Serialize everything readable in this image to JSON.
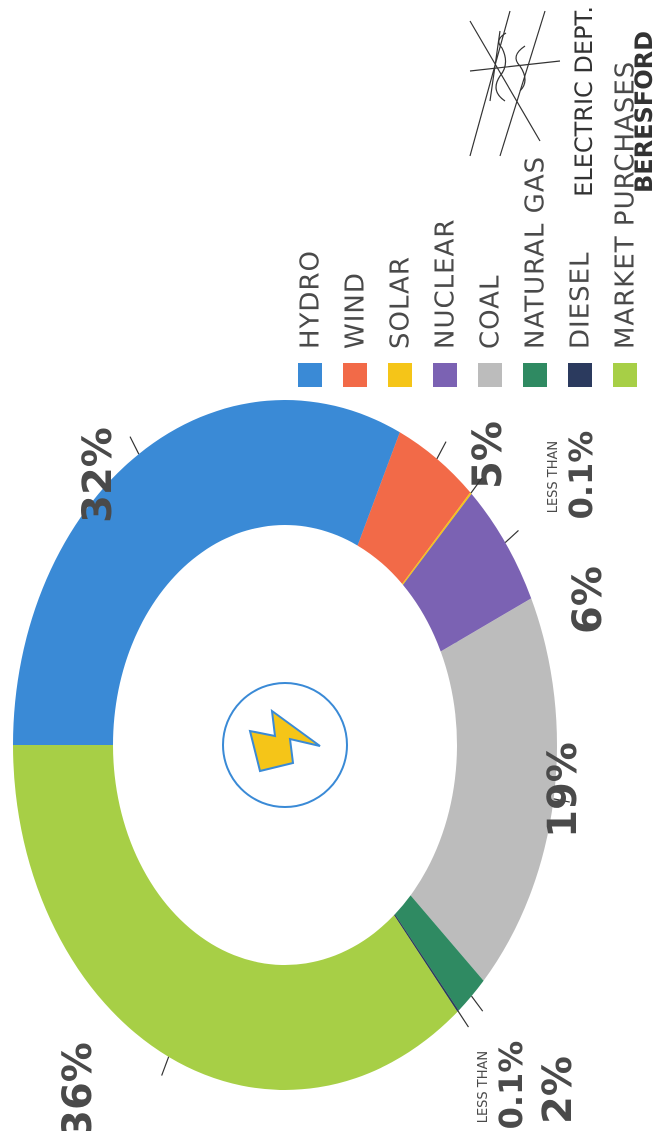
{
  "chart_data": {
    "type": "pie",
    "donut": true,
    "title": "BERESFORD",
    "subtitle": "ELECTRIC DEPT.",
    "categories": [
      "HYDRO",
      "WIND",
      "SOLAR",
      "NUCLEAR",
      "COAL",
      "NATURAL GAS",
      "DIESEL",
      "MARKET PURCHASES"
    ],
    "values": [
      32,
      5,
      0.1,
      6,
      19,
      2,
      0.1,
      36
    ],
    "value_labels": [
      "32%",
      "5%",
      "LESS THAN 0.1%",
      "6%",
      "19%",
      "2%",
      "LESS THAN 0.1%",
      "36%"
    ],
    "colors": [
      "#3a8ad6",
      "#f26a48",
      "#f5c518",
      "#7b62b3",
      "#bcbcbc",
      "#2f8a62",
      "#2b3a5e",
      "#a7cf46"
    ]
  }
}
